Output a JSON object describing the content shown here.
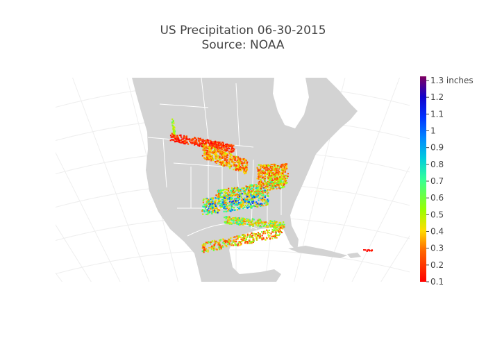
{
  "title_line1": "US Precipitation 06-30-2015",
  "title_line2": "Source: NOAA",
  "chart_data": {
    "type": "scatter-geo",
    "title": "US Precipitation 06-30-2015 Source: NOAA",
    "projection": "albers-usa-like conic, North America",
    "land_color": "#d3d3d3",
    "border_color": "#ffffff",
    "colorbar": {
      "range": [
        0.1,
        1.3
      ],
      "tick_labels": [
        "0.1",
        "0.2",
        "0.3",
        "0.4",
        "0.5",
        "0.6",
        "0.7",
        "0.8",
        "0.9",
        "1",
        "1.1",
        "1.2",
        "1.3 inches"
      ],
      "tick_values": [
        0.1,
        0.2,
        0.3,
        0.4,
        0.5,
        0.6,
        0.7,
        0.8,
        0.9,
        1,
        1.1,
        1.2,
        1.3
      ],
      "colorscale": [
        [
          0,
          "#ff0000"
        ],
        [
          0.15,
          "#ff6600"
        ],
        [
          0.25,
          "#ffdd00"
        ],
        [
          0.35,
          "#99ff00"
        ],
        [
          0.5,
          "#33ff99"
        ],
        [
          0.6,
          "#00ccdd"
        ],
        [
          0.7,
          "#0088ff"
        ],
        [
          0.8,
          "#0033ff"
        ],
        [
          0.9,
          "#1100cc"
        ],
        [
          1,
          "#800060"
        ]
      ]
    },
    "clusters_approx": [
      {
        "lon": [
          -117.5,
          -117
        ],
        "lat": [
          53,
          50
        ],
        "spread": 0.6,
        "value": [
          0.45,
          0.65
        ],
        "n": 40
      },
      {
        "lon": [
          -118,
          -97
        ],
        "lat": [
          49.5,
          47
        ],
        "spread": 0.9,
        "value": [
          0.1,
          0.3
        ],
        "n": 320
      },
      {
        "lon": [
          -107.5,
          -92.5
        ],
        "lat": [
          46.5,
          42.8
        ],
        "spread": 1.6,
        "value": [
          0.2,
          0.5
        ],
        "n": 380
      },
      {
        "lon": [
          -89,
          -79
        ],
        "lat": [
          41.2,
          41.5
        ],
        "spread": 2.2,
        "value": [
          0.2,
          0.55
        ],
        "n": 360
      },
      {
        "lon": [
          -103,
          -80
        ],
        "lat": [
          36.8,
          39.2
        ],
        "spread": 0.9,
        "value": [
          0.2,
          0.85
        ],
        "n": 300
      },
      {
        "lon": [
          -107.5,
          -85.5
        ],
        "lat": [
          34,
          36.2
        ],
        "spread": 1.8,
        "value": [
          0.3,
          1.1
        ],
        "n": 520
      },
      {
        "lon": [
          -100.5,
          -80
        ],
        "lat": [
          31.2,
          30
        ],
        "spread": 0.8,
        "value": [
          0.3,
          0.8
        ],
        "n": 260
      },
      {
        "lon": [
          -107.5,
          -81
        ],
        "lat": [
          25,
          28.5
        ],
        "spread": 1.1,
        "value": [
          0.2,
          0.65
        ],
        "n": 300
      },
      {
        "lon": [
          -53.5,
          -50.5
        ],
        "lat": [
          24.4,
          24.4
        ],
        "spread": 0.15,
        "value": [
          0.1,
          0.15
        ],
        "n": 10
      }
    ]
  }
}
